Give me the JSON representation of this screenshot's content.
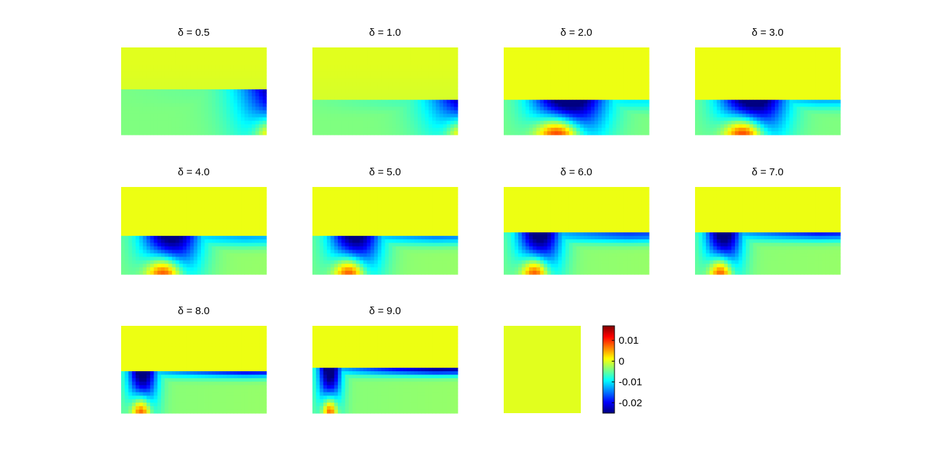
{
  "chart_data": {
    "type": "heatmap",
    "layout": "small multiples, 3 rows x 4 columns",
    "colormap": "jet",
    "color_range": [
      -0.025,
      0.017
    ],
    "colorbar": {
      "ticks": [
        0.01,
        0,
        -0.01,
        -0.02
      ],
      "tick_labels": [
        "0.01",
        "0",
        "-0.01",
        "-0.02"
      ]
    },
    "axes_visible": false,
    "panels": [
      {
        "title": "δ = 0.5",
        "delta": 0.5
      },
      {
        "title": "δ = 1.0",
        "delta": 1.0
      },
      {
        "title": "δ = 2.0",
        "delta": 2.0
      },
      {
        "title": "δ = 3.0",
        "delta": 3.0
      },
      {
        "title": "δ = 4.0",
        "delta": 4.0
      },
      {
        "title": "δ = 5.0",
        "delta": 5.0
      },
      {
        "title": "δ = 6.0",
        "delta": 6.0
      },
      {
        "title": "δ = 7.0",
        "delta": 7.0
      },
      {
        "title": "δ = 8.0",
        "delta": 8.0
      },
      {
        "title": "δ = 9.0",
        "delta": 9.0
      }
    ],
    "blank_panel_value": 0
  }
}
